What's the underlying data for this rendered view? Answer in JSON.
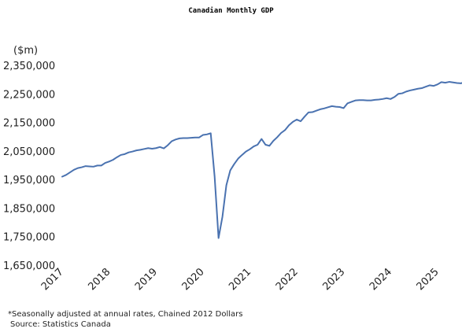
{
  "chart_data": {
    "type": "line",
    "title": "Canadian Monthly GDP",
    "ylabel": "($m)",
    "xlabel": "",
    "ylim": [
      1650000,
      2350000
    ],
    "y_ticks": [
      1650000,
      1750000,
      1850000,
      1950000,
      2050000,
      2150000,
      2250000,
      2350000
    ],
    "y_tick_labels": [
      "1,650,000",
      "1,750,000",
      "1,850,000",
      "1,950,000",
      "2,050,000",
      "2,150,000",
      "2,250,000",
      "2,350,000"
    ],
    "x_tick_labels": [
      "2017",
      "2018",
      "2019",
      "2020",
      "2021",
      "2022",
      "2023",
      "2024",
      "2025"
    ],
    "grid": false,
    "line_color": "#4a72b0",
    "footnote": "*Seasonally adjusted at annual rates, Chained 2012 Dollars",
    "source": "Source: Statistics Canada",
    "series": [
      {
        "values": [
          1960000,
          1966000,
          1975000,
          1984000,
          1990000,
          1993000,
          1997000,
          1996000,
          1995000,
          1999000,
          1999000,
          2008000,
          2013000,
          2019000,
          2028000,
          2036000,
          2039000,
          2045000,
          2048000,
          2052000,
          2054000,
          2057000,
          2060000,
          2058000,
          2060000,
          2064000,
          2059000,
          2070000,
          2084000,
          2090000,
          2094000,
          2095000,
          2095000,
          2096000,
          2097000,
          2097000,
          2106000,
          2108000,
          2112000,
          1960000,
          1745000,
          1820000,
          1930000,
          1982000,
          2004000,
          2023000,
          2036000,
          2048000,
          2056000,
          2066000,
          2072000,
          2092000,
          2072000,
          2068000,
          2085000,
          2098000,
          2113000,
          2123000,
          2140000,
          2152000,
          2160000,
          2154000,
          2170000,
          2185000,
          2186000,
          2191000,
          2196000,
          2199000,
          2203000,
          2207000,
          2205000,
          2204000,
          2200000,
          2217000,
          2222000,
          2227000,
          2228000,
          2228000,
          2227000,
          2227000,
          2229000,
          2230000,
          2232000,
          2235000,
          2232000,
          2239000,
          2250000,
          2252000,
          2258000,
          2262000,
          2265000,
          2268000,
          2270000,
          2275000,
          2280000,
          2278000,
          2283000,
          2291000,
          2289000,
          2292000,
          2290000,
          2288000,
          2287000,
          2291000
        ]
      }
    ]
  }
}
